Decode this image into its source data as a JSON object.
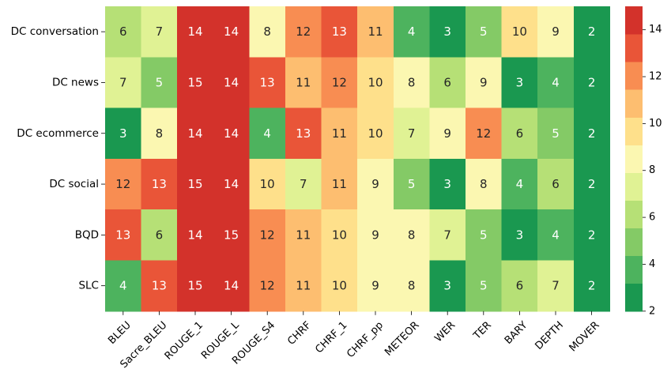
{
  "chart_data": {
    "type": "heatmap",
    "rows": [
      "DC conversation",
      "DC news",
      "DC ecommerce",
      "DC social",
      "BQD",
      "SLC"
    ],
    "columns": [
      "BLEU",
      "Sacre_BLEU",
      "ROUGE_1",
      "ROUGE_L",
      "ROUGE_S4",
      "CHRF",
      "CHRF_1",
      "CHRF_pp",
      "METEOR",
      "WER",
      "TER",
      "BARY",
      "DEPTH",
      "MOVER"
    ],
    "values": [
      [
        6,
        7,
        14,
        14,
        8,
        12,
        13,
        11,
        4,
        3,
        5,
        10,
        9,
        2
      ],
      [
        7,
        5,
        15,
        14,
        13,
        11,
        12,
        10,
        8,
        6,
        9,
        3,
        4,
        2
      ],
      [
        3,
        8,
        14,
        14,
        4,
        13,
        11,
        10,
        7,
        9,
        12,
        6,
        5,
        2
      ],
      [
        12,
        13,
        15,
        14,
        10,
        7,
        11,
        9,
        5,
        3,
        8,
        4,
        6,
        2
      ],
      [
        13,
        6,
        14,
        15,
        12,
        11,
        10,
        9,
        8,
        7,
        5,
        3,
        4,
        2
      ],
      [
        4,
        13,
        15,
        14,
        12,
        11,
        10,
        9,
        8,
        3,
        5,
        6,
        7,
        2
      ]
    ],
    "color_range": [
      2,
      15
    ],
    "colorbar_ticks": [
      2,
      4,
      6,
      8,
      10,
      12,
      14
    ],
    "colormap_discrete": [
      "#1a9850",
      "#4db35e",
      "#84ca66",
      "#b6e076",
      "#e0f294",
      "#fbf7b1",
      "#fee08b",
      "#fdbe70",
      "#f88d52",
      "#e95538",
      "#d3322b"
    ],
    "annotation_colors": {
      "dark": "#262626",
      "light": "#ffffff"
    }
  }
}
